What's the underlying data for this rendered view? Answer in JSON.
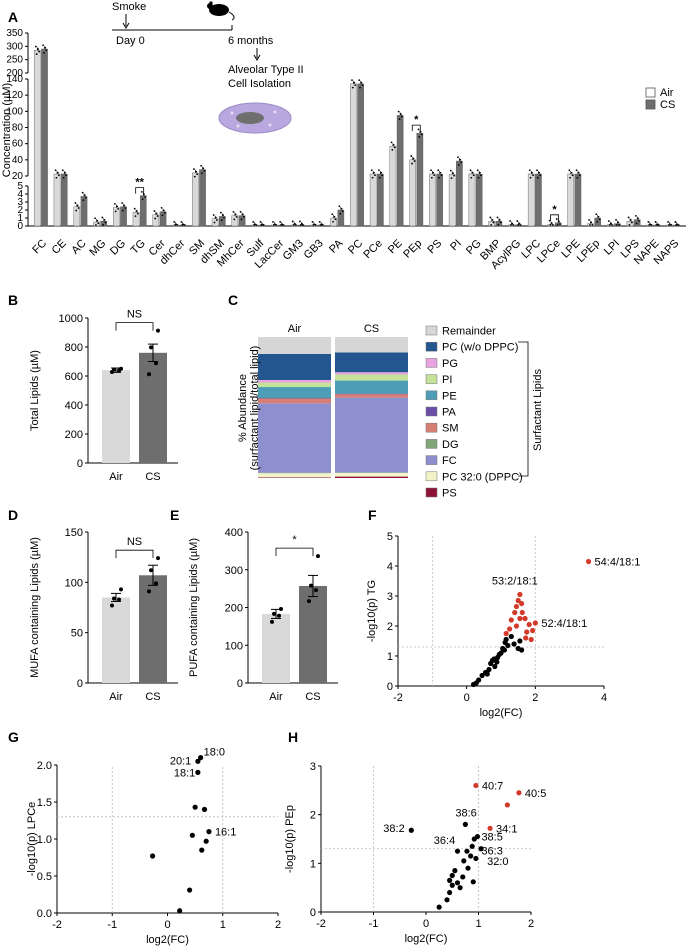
{
  "panel_letters": {
    "A": "A",
    "B": "B",
    "C": "C",
    "D": "D",
    "E": "E",
    "F": "F",
    "G": "G",
    "H": "H"
  },
  "schematic": {
    "smoke": "Smoke",
    "day0": "Day 0",
    "months": "6 months",
    "isolation_line1": "Alveolar Type II",
    "isolation_line2": "Cell Isolation"
  },
  "colors": {
    "air": "#d9d9d9",
    "cs": "#6e6e6e",
    "remainder": "#d6d6d6",
    "pc": "#23558f",
    "pg": "#e8a2e0",
    "pi": "#c5e29a",
    "pe": "#4e9db6",
    "pa": "#6a4ea6",
    "sm": "#d77f75",
    "dg": "#82a57a",
    "fc": "#8e8fcf",
    "pc320": "#f3f3c9",
    "ps": "#8c1238",
    "sig": "#d43a2a",
    "nonsig": "#000000"
  },
  "chart_data": [
    {
      "id": "A",
      "type": "bar",
      "ylabel": "Concentration (µM)",
      "y_segments": [
        {
          "range": [
            0,
            5
          ],
          "ticks": [
            0,
            1,
            2,
            3,
            4,
            5
          ]
        },
        {
          "range": [
            20,
            140
          ],
          "ticks": [
            20,
            40,
            60,
            80,
            100,
            120,
            140
          ]
        },
        {
          "range": [
            200,
            350
          ],
          "ticks": [
            200,
            250,
            300,
            350
          ]
        }
      ],
      "legend": [
        "Air",
        "CS"
      ],
      "categories": [
        "FC",
        "CE",
        "AC",
        "MG",
        "DG",
        "TG",
        "Cer",
        "dhCer",
        "SM",
        "dhSM",
        "MhCer",
        "Sulf",
        "LacCer",
        "GM3",
        "GB3",
        "PA",
        "PC",
        "PCe",
        "PE",
        "PEp",
        "PS",
        "PI",
        "PG",
        "BMP",
        "AcylPG",
        "LPC",
        "LPCe",
        "LPE",
        "LPEp",
        "LPI",
        "LPS",
        "NAPE",
        "NAPS"
      ],
      "series": [
        {
          "name": "Air",
          "values": [
            285,
            9.4,
            2.4,
            0.5,
            2.3,
            1.7,
            1.4,
            0.05,
            23.8,
            0.9,
            1.3,
            0.05,
            0.05,
            0.1,
            0.05,
            1.0,
            134,
            12.9,
            57,
            40,
            9,
            22,
            10.5,
            0.6,
            0.15,
            15.4,
            0.2,
            11.2,
            0.3,
            0.15,
            0.6,
            0.04,
            0.04
          ]
        },
        {
          "name": "CS",
          "values": [
            290,
            16,
            3.7,
            0.6,
            2.4,
            3.8,
            1.8,
            0.05,
            28,
            1.2,
            1.3,
            0.05,
            0.05,
            0.1,
            0.05,
            2.0,
            134,
            13.2,
            95,
            73,
            10.3,
            38.5,
            10.3,
            0.6,
            0.15,
            15.4,
            0.4,
            11.0,
            1.0,
            0.3,
            0.8,
            0.04,
            0.04
          ]
        }
      ],
      "annotations": [
        {
          "category": "TG",
          "text": "**"
        },
        {
          "category": "PEp",
          "text": "*"
        },
        {
          "category": "LPCe",
          "text": "*"
        }
      ]
    },
    {
      "id": "B",
      "type": "bar",
      "ylabel": "Total Lipids (µM)",
      "categories": [
        "Air",
        "CS"
      ],
      "values": [
        640,
        760
      ],
      "errors": [
        15,
        60
      ],
      "points": [
        [
          628,
          638,
          645,
          650
        ],
        [
          612,
          688,
          797,
          913
        ]
      ],
      "ylim": [
        0,
        1000
      ],
      "yticks": [
        0,
        200,
        400,
        600,
        800,
        1000
      ],
      "significance": "NS"
    },
    {
      "id": "C",
      "type": "stacked-bar",
      "ylabel_line1": "% Abundance",
      "ylabel_line2": "(surfactant lipid/total lipid)",
      "categories": [
        "Air",
        "CS"
      ],
      "legend": [
        "Remainder",
        "PC (w/o DPPC)",
        "PG",
        "PI",
        "PE",
        "PA",
        "SM",
        "DG",
        "FC",
        "PC 32:0 (DPPC)",
        "PS"
      ],
      "bracket_label": "Surfactant Lipids",
      "series": [
        {
          "name": "PS",
          "values": [
            0.4,
            1.0
          ]
        },
        {
          "name": "PC 32:0 (DPPC)",
          "values": [
            3.0,
            2.6
          ]
        },
        {
          "name": "DG",
          "values": [
            0.4,
            0.4
          ]
        },
        {
          "name": "FC",
          "values": [
            49.2,
            53.0
          ]
        },
        {
          "name": "SM",
          "values": [
            3.5,
            2.6
          ]
        },
        {
          "name": "PA",
          "values": [
            0.2,
            0.2
          ]
        },
        {
          "name": "PE",
          "values": [
            7.8,
            9.3
          ]
        },
        {
          "name": "PI",
          "values": [
            3.2,
            4.3
          ]
        },
        {
          "name": "PG",
          "values": [
            1.8,
            1.6
          ]
        },
        {
          "name": "PC (w/o DPPC)",
          "values": [
            18.5,
            14.0
          ]
        },
        {
          "name": "Remainder",
          "values": [
            12.0,
            11.0
          ]
        }
      ]
    },
    {
      "id": "D",
      "type": "bar",
      "ylabel": "MUFA containing Lipids (µM)",
      "categories": [
        "Air",
        "CS"
      ],
      "values": [
        85,
        107
      ],
      "errors": [
        4,
        10
      ],
      "points": [
        [
          77,
          83,
          84,
          93
        ],
        [
          91,
          99,
          112,
          124
        ]
      ],
      "ylim": [
        0,
        150
      ],
      "yticks": [
        0,
        50,
        100,
        150
      ],
      "significance": "NS"
    },
    {
      "id": "E",
      "type": "bar",
      "ylabel": "PUFA containing Lipids (µM)",
      "categories": [
        "Air",
        "CS"
      ],
      "values": [
        183,
        257
      ],
      "errors": [
        12,
        28
      ],
      "points": [
        [
          162,
          178,
          183,
          196
        ],
        [
          217,
          246,
          258,
          336
        ]
      ],
      "ylim": [
        0,
        400
      ],
      "yticks": [
        0,
        100,
        200,
        300,
        400
      ],
      "significance": "*"
    },
    {
      "id": "F",
      "type": "scatter",
      "xlabel": "log2(FC)",
      "ylabel": "-log10(p) TG",
      "xlim": [
        -2,
        4
      ],
      "ylim": [
        0,
        5
      ],
      "xticks": [
        -2,
        0,
        2,
        4
      ],
      "yticks": [
        0,
        1,
        2,
        3,
        4,
        5
      ],
      "threshold_y": 1.3,
      "threshold_x": -1,
      "threshold_x2": 2,
      "points_nonsig": [
        [
          0.2,
          0.05
        ],
        [
          0.28,
          0.1
        ],
        [
          0.35,
          0.2
        ],
        [
          0.45,
          0.35
        ],
        [
          0.55,
          0.45
        ],
        [
          0.6,
          0.4
        ],
        [
          0.65,
          0.55
        ],
        [
          0.7,
          0.75
        ],
        [
          0.75,
          0.85
        ],
        [
          0.8,
          0.9
        ],
        [
          0.82,
          0.65
        ],
        [
          0.88,
          0.8
        ],
        [
          0.9,
          0.95
        ],
        [
          0.95,
          1.05
        ],
        [
          1.0,
          1.1
        ],
        [
          1.05,
          1.25
        ],
        [
          1.1,
          1.2
        ],
        [
          1.12,
          1.45
        ],
        [
          1.15,
          1.55
        ],
        [
          1.2,
          1.35
        ],
        [
          1.3,
          1.65
        ],
        [
          1.38,
          1.4
        ],
        [
          1.5,
          1.25
        ],
        [
          1.55,
          1.5
        ],
        [
          1.6,
          1.2
        ]
      ],
      "points_sig": [
        [
          1.15,
          1.75
        ],
        [
          1.25,
          1.9
        ],
        [
          1.3,
          2.2
        ],
        [
          1.4,
          2.45
        ],
        [
          1.45,
          2.65
        ],
        [
          1.5,
          2.85
        ],
        [
          1.55,
          3.05
        ],
        [
          1.6,
          2.75
        ],
        [
          1.45,
          2.0
        ],
        [
          1.55,
          2.25
        ],
        [
          1.62,
          2.45
        ],
        [
          1.7,
          2.25
        ],
        [
          1.75,
          1.8
        ],
        [
          1.82,
          2.05
        ],
        [
          1.88,
          1.55
        ],
        [
          1.92,
          1.85
        ],
        [
          2.0,
          2.1
        ],
        [
          1.72,
          1.6
        ],
        [
          3.55,
          4.15
        ]
      ],
      "labels": [
        {
          "text": "54:4/18:1",
          "x": 3.55,
          "y": 4.15
        },
        {
          "text": "53:2/18:1",
          "x": 1.55,
          "y": 3.05
        },
        {
          "text": "52:4/18:1",
          "x": 2.0,
          "y": 2.1
        }
      ]
    },
    {
      "id": "G",
      "type": "scatter",
      "xlabel": "log2(FC)",
      "ylabel": "-log10(p) LPCe",
      "xlim": [
        -2,
        2
      ],
      "ylim": [
        0,
        2.0
      ],
      "xticks": [
        -2,
        -1,
        0,
        1,
        2
      ],
      "yticks": [
        0.0,
        0.5,
        1.0,
        1.5,
        2.0
      ],
      "threshold_y": 1.3,
      "threshold_x": -1,
      "points_nonsig": [
        [
          -0.27,
          0.77
        ],
        [
          0.22,
          0.03
        ],
        [
          0.4,
          0.31
        ],
        [
          0.45,
          1.05
        ],
        [
          0.5,
          1.43
        ],
        [
          0.55,
          2.05
        ],
        [
          0.55,
          1.9
        ],
        [
          0.6,
          2.1
        ],
        [
          0.62,
          0.85
        ],
        [
          0.67,
          1.4
        ],
        [
          0.7,
          0.97
        ],
        [
          0.75,
          1.1
        ]
      ],
      "points_sig": [],
      "labels": [
        {
          "text": "18:1",
          "x": 0.55,
          "y": 1.9
        },
        {
          "text": "20:1",
          "x": 0.55,
          "y": 2.05
        },
        {
          "text": "18:0",
          "x": 0.6,
          "y": 2.1
        },
        {
          "text": "16:1",
          "x": 0.75,
          "y": 1.1
        }
      ]
    },
    {
      "id": "H",
      "type": "scatter",
      "xlabel": "log2(FC)",
      "ylabel": "-log10(p) PEp",
      "xlim": [
        -2,
        2
      ],
      "ylim": [
        0,
        3
      ],
      "xticks": [
        -2,
        -1,
        0,
        1,
        2
      ],
      "yticks": [
        0,
        1,
        2,
        3
      ],
      "threshold_y": 1.3,
      "threshold_x": -1,
      "points_nonsig": [
        [
          -0.28,
          1.68
        ],
        [
          0.25,
          0.1
        ],
        [
          0.4,
          0.25
        ],
        [
          0.45,
          0.4
        ],
        [
          0.5,
          0.55
        ],
        [
          0.45,
          0.65
        ],
        [
          0.5,
          0.75
        ],
        [
          0.55,
          0.85
        ],
        [
          0.6,
          0.6
        ],
        [
          0.6,
          1.25
        ],
        [
          0.65,
          0.5
        ],
        [
          0.7,
          0.72
        ],
        [
          0.72,
          1.05
        ],
        [
          0.75,
          1.8
        ],
        [
          0.78,
          1.25
        ],
        [
          0.8,
          0.9
        ],
        [
          0.85,
          1.15
        ],
        [
          0.88,
          1.35
        ],
        [
          0.9,
          0.62
        ],
        [
          0.92,
          1.5
        ],
        [
          0.95,
          1.1
        ],
        [
          0.98,
          1.55
        ],
        [
          1.05,
          1.3
        ]
      ],
      "points_sig": [
        [
          0.95,
          2.6
        ],
        [
          1.22,
          1.72
        ],
        [
          1.77,
          2.45
        ],
        [
          1.55,
          2.2
        ]
      ],
      "labels": [
        {
          "text": "40:7",
          "x": 0.95,
          "y": 2.6
        },
        {
          "text": "40:5",
          "x": 1.77,
          "y": 2.45
        },
        {
          "text": "38:6",
          "x": 0.75,
          "y": 1.8
        },
        {
          "text": "38:2",
          "x": -0.28,
          "y": 1.68
        },
        {
          "text": "34:1",
          "x": 1.22,
          "y": 1.72
        },
        {
          "text": "36:4",
          "x": 0.72,
          "y": 1.5
        },
        {
          "text": "38:5",
          "x": 0.98,
          "y": 1.55
        },
        {
          "text": "36:3",
          "x": 0.98,
          "y": 1.35
        },
        {
          "text": "32:0",
          "x": 1.05,
          "y": 1.05
        }
      ]
    }
  ]
}
